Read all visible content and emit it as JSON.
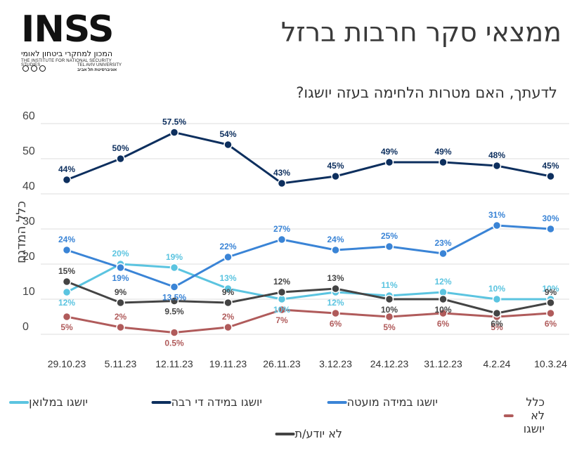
{
  "header": {
    "title": "ממצאי סקר חרבות ברזל",
    "logo_text": "INSS",
    "logo_hebrew": "המכון למחקרי ביטחון לאומי",
    "logo_english": "THE INSTITUTE FOR NATIONAL SECURITY STUDIES",
    "logo_university_he": "אוניברסיטת תל אביב",
    "logo_university_en": "TEL AVIV UNIVERSITY"
  },
  "chart_data": {
    "type": "line",
    "title": "לדעתך, האם מטרות הלחימה בעזה יושגו?",
    "ylabel": "כלל המדגם",
    "ylim": [
      0,
      60
    ],
    "yticks": [
      0,
      10,
      20,
      30,
      40,
      50,
      60
    ],
    "grid": true,
    "legend_position": "bottom",
    "categories": [
      "29.10.23",
      "5.11.23",
      "12.11.23",
      "19.11.23",
      "26.11.23",
      "3.12.23",
      "24.12.23",
      "31.12.23",
      "4.2.24",
      "10.3.24"
    ],
    "series": [
      {
        "name": "יושגו במלואן",
        "color": "#5bc4e0",
        "values": [
          12,
          20,
          19,
          13,
          10,
          12,
          11,
          12,
          10,
          10
        ],
        "labels": [
          "12%",
          "20%",
          "19%",
          "13%",
          "10%",
          "12%",
          "11%",
          "12%",
          "10%",
          "10%"
        ]
      },
      {
        "name": "יושגו במידה די רבה",
        "color": "#0d2f5e",
        "values": [
          44,
          50,
          57.5,
          54,
          43,
          45,
          49,
          49,
          48,
          45
        ],
        "labels": [
          "44%",
          "50%",
          "57.5%",
          "54%",
          "43%",
          "45%",
          "49%",
          "49%",
          "48%",
          "45%"
        ]
      },
      {
        "name": "יושגו במידה מועטה",
        "color": "#3a84d6",
        "values": [
          24,
          19,
          13.5,
          22,
          27,
          24,
          25,
          23,
          31,
          30
        ],
        "labels": [
          "24%",
          "19%",
          "13.5%",
          "22%",
          "27%",
          "24%",
          "25%",
          "23%",
          "31%",
          "30%"
        ]
      },
      {
        "name": "כלל לא יושגו",
        "color": "#b05b5b",
        "values": [
          5,
          2,
          0.5,
          2,
          7,
          6,
          5,
          6,
          5,
          6
        ],
        "labels": [
          "5%",
          "2%",
          "0.5%",
          "2%",
          "7%",
          "6%",
          "5%",
          "6%",
          "5%",
          "6%"
        ]
      },
      {
        "name": "לא יודע/ת",
        "color": "#444444",
        "values": [
          15,
          9,
          9.5,
          9,
          12,
          13,
          10,
          10,
          6,
          9
        ],
        "labels": [
          "15%",
          "9%",
          "9.5%",
          "9%",
          "12%",
          "13%",
          "10%",
          "10%",
          "6%",
          "9%"
        ]
      }
    ]
  }
}
